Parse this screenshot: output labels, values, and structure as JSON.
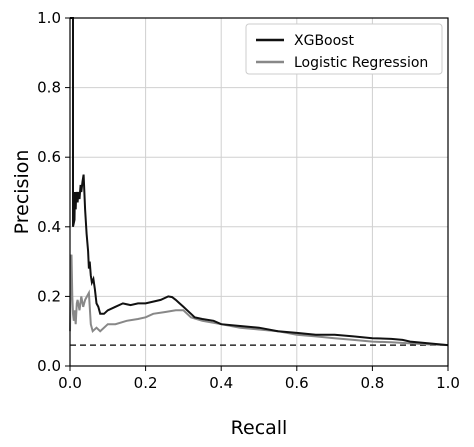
{
  "chart_data": {
    "type": "line",
    "title": "",
    "xlabel": "Recall",
    "ylabel": "Precision",
    "xlim": [
      0.0,
      1.0
    ],
    "ylim": [
      0.0,
      1.0
    ],
    "grid": true,
    "legend_position": "top-right",
    "x_ticks": [
      "0.0",
      "0.2",
      "0.4",
      "0.6",
      "0.8",
      "1.0"
    ],
    "y_ticks": [
      "0.0",
      "0.2",
      "0.4",
      "0.6",
      "0.8",
      "1.0"
    ],
    "baseline": {
      "y": 0.06,
      "style": "dashed",
      "color": "#000000"
    },
    "series": [
      {
        "name": "XGBoost",
        "color": "#111111",
        "x": [
          0.0,
          0.004,
          0.006,
          0.008,
          0.008,
          0.012,
          0.013,
          0.015,
          0.016,
          0.018,
          0.02,
          0.022,
          0.025,
          0.028,
          0.03,
          0.033,
          0.036,
          0.04,
          0.044,
          0.048,
          0.05,
          0.052,
          0.055,
          0.058,
          0.062,
          0.066,
          0.07,
          0.075,
          0.08,
          0.09,
          0.1,
          0.12,
          0.14,
          0.16,
          0.18,
          0.2,
          0.22,
          0.24,
          0.26,
          0.27,
          0.28,
          0.29,
          0.3,
          0.31,
          0.32,
          0.33,
          0.35,
          0.38,
          0.4,
          0.45,
          0.5,
          0.55,
          0.6,
          0.65,
          0.7,
          0.75,
          0.8,
          0.85,
          0.88,
          0.9,
          0.95,
          1.0
        ],
        "y": [
          1.0,
          1.0,
          1.0,
          1.0,
          0.4,
          0.42,
          0.5,
          0.45,
          0.48,
          0.5,
          0.47,
          0.5,
          0.48,
          0.52,
          0.5,
          0.53,
          0.55,
          0.45,
          0.38,
          0.33,
          0.28,
          0.3,
          0.26,
          0.24,
          0.25,
          0.22,
          0.18,
          0.17,
          0.15,
          0.15,
          0.16,
          0.17,
          0.18,
          0.175,
          0.18,
          0.18,
          0.185,
          0.19,
          0.2,
          0.198,
          0.19,
          0.18,
          0.17,
          0.16,
          0.15,
          0.14,
          0.135,
          0.13,
          0.12,
          0.115,
          0.11,
          0.1,
          0.095,
          0.09,
          0.09,
          0.085,
          0.08,
          0.078,
          0.075,
          0.07,
          0.065,
          0.06
        ]
      },
      {
        "name": "Logistic Regression",
        "color": "#888888",
        "x": [
          0.0,
          0.002,
          0.004,
          0.006,
          0.008,
          0.01,
          0.012,
          0.015,
          0.018,
          0.02,
          0.025,
          0.03,
          0.035,
          0.04,
          0.045,
          0.05,
          0.055,
          0.06,
          0.07,
          0.08,
          0.1,
          0.12,
          0.15,
          0.18,
          0.2,
          0.22,
          0.25,
          0.28,
          0.3,
          0.32,
          0.35,
          0.4,
          0.45,
          0.5,
          0.55,
          0.6,
          0.65,
          0.7,
          0.75,
          0.8,
          0.85,
          0.9,
          0.95,
          1.0
        ],
        "y": [
          0.1,
          0.28,
          0.32,
          0.2,
          0.15,
          0.13,
          0.16,
          0.12,
          0.18,
          0.19,
          0.16,
          0.2,
          0.17,
          0.19,
          0.2,
          0.21,
          0.12,
          0.1,
          0.11,
          0.1,
          0.12,
          0.12,
          0.13,
          0.135,
          0.14,
          0.15,
          0.155,
          0.16,
          0.16,
          0.14,
          0.13,
          0.12,
          0.11,
          0.105,
          0.1,
          0.09,
          0.085,
          0.08,
          0.075,
          0.07,
          0.068,
          0.065,
          0.062,
          0.06
        ]
      }
    ]
  }
}
